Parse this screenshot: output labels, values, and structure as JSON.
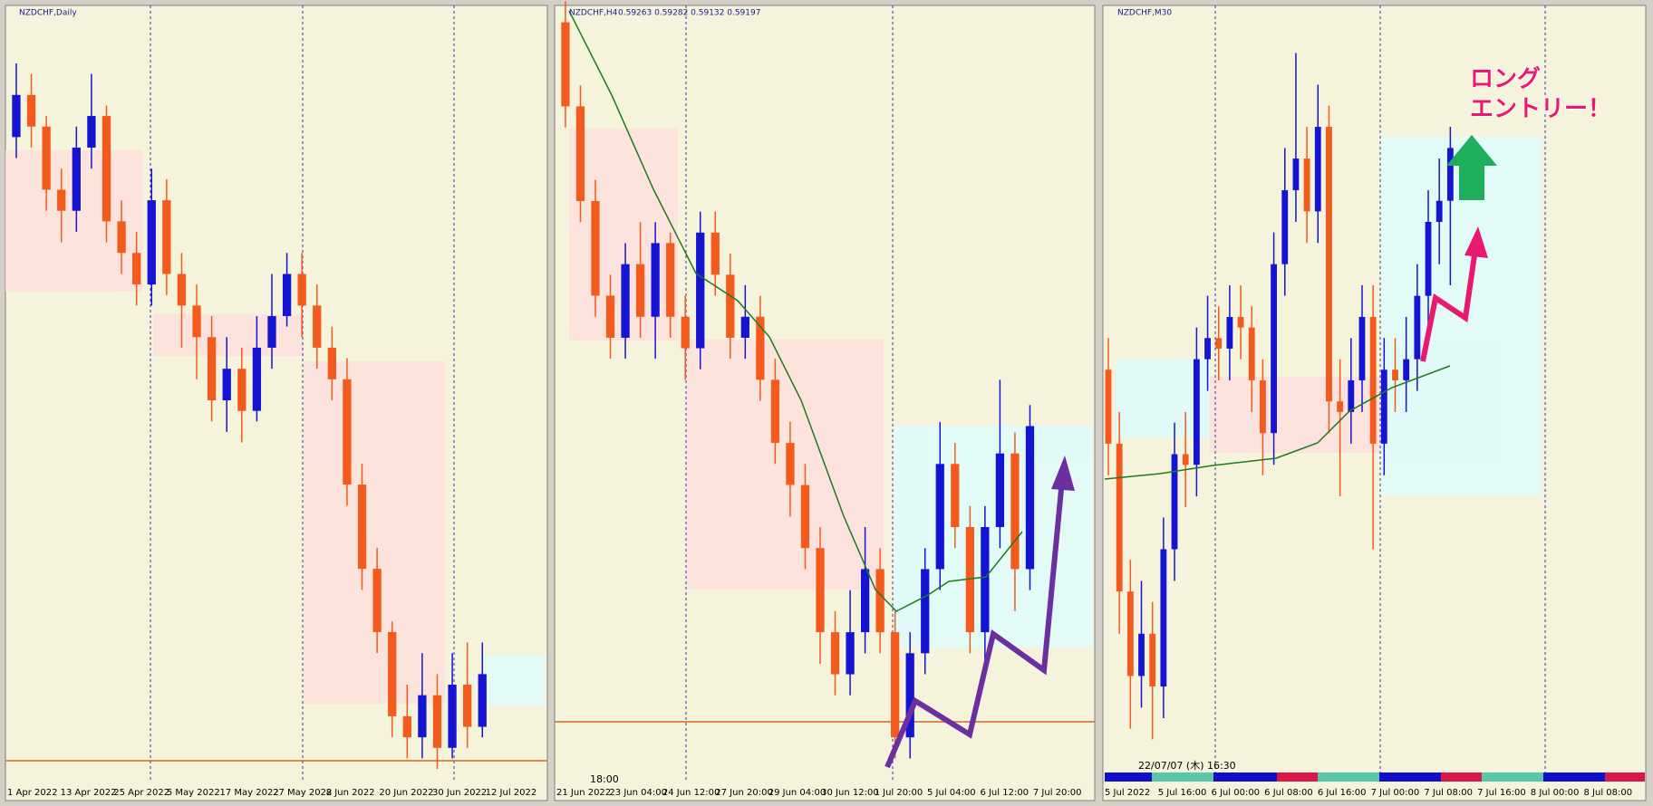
{
  "chart_data": [
    {
      "type": "candlestick",
      "title": "NZDCHF,Daily",
      "xtick_labels": [
        "1 Apr 2022",
        "13 Apr 2022",
        "25 Apr 2022",
        "5 May 2022",
        "17 May 2022",
        "27 May 2022",
        "8 Jun 2022",
        "20 Jun 2022",
        "30 Jun 2022",
        "12 Jul 2022"
      ],
      "ylim": [
        0.5958,
        0.6695
      ],
      "colors": {
        "bull": "#1414d2",
        "bear": "#f25a1e"
      },
      "candles": [
        [
          0.657,
          0.664,
          0.655,
          0.661
        ],
        [
          0.661,
          0.663,
          0.656,
          0.658
        ],
        [
          0.658,
          0.659,
          0.65,
          0.652
        ],
        [
          0.652,
          0.654,
          0.647,
          0.65
        ],
        [
          0.65,
          0.658,
          0.648,
          0.656
        ],
        [
          0.656,
          0.663,
          0.654,
          0.659
        ],
        [
          0.659,
          0.66,
          0.647,
          0.649
        ],
        [
          0.649,
          0.651,
          0.644,
          0.646
        ],
        [
          0.646,
          0.648,
          0.641,
          0.643
        ],
        [
          0.643,
          0.654,
          0.641,
          0.651
        ],
        [
          0.651,
          0.653,
          0.642,
          0.644
        ],
        [
          0.644,
          0.646,
          0.637,
          0.641
        ],
        [
          0.641,
          0.643,
          0.634,
          0.638
        ],
        [
          0.638,
          0.64,
          0.63,
          0.632
        ],
        [
          0.632,
          0.638,
          0.629,
          0.635
        ],
        [
          0.635,
          0.637,
          0.628,
          0.631
        ],
        [
          0.631,
          0.64,
          0.63,
          0.637
        ],
        [
          0.637,
          0.644,
          0.635,
          0.64
        ],
        [
          0.64,
          0.646,
          0.639,
          0.644
        ],
        [
          0.644,
          0.646,
          0.638,
          0.641
        ],
        [
          0.641,
          0.643,
          0.635,
          0.637
        ],
        [
          0.637,
          0.639,
          0.632,
          0.634
        ],
        [
          0.634,
          0.636,
          0.622,
          0.624
        ],
        [
          0.624,
          0.626,
          0.614,
          0.616
        ],
        [
          0.616,
          0.618,
          0.608,
          0.61
        ],
        [
          0.61,
          0.611,
          0.6,
          0.602
        ],
        [
          0.602,
          0.605,
          0.598,
          0.6
        ],
        [
          0.6,
          0.608,
          0.598,
          0.604
        ],
        [
          0.604,
          0.606,
          0.597,
          0.599
        ],
        [
          0.599,
          0.608,
          0.598,
          0.605
        ],
        [
          0.605,
          0.609,
          0.599,
          0.601
        ],
        [
          0.601,
          0.609,
          0.6,
          0.606
        ]
      ]
    },
    {
      "type": "candlestick",
      "title": "NZDCHF,H4",
      "subtitle": "0.59263 0.59282 0.59132 0.59197",
      "time_label": "18:00",
      "xtick_labels": [
        "21 Jun 2022",
        "23 Jun 04:00",
        "24 Jun 12:00",
        "27 Jun 20:00",
        "29 Jun 04:00",
        "30 Jun 12:00",
        "1 Jul 20:00",
        "5 Jul 04:00",
        "6 Jul 12:00",
        "7 Jul 20:00"
      ],
      "ylim": [
        0.5751,
        0.612
      ],
      "colors": {
        "bull": "#1414d2",
        "bear": "#f25a1e"
      },
      "candles": [
        [
          0.6112,
          0.6122,
          0.6062,
          0.6072
        ],
        [
          0.6072,
          0.6082,
          0.6017,
          0.6027
        ],
        [
          0.6027,
          0.6037,
          0.5972,
          0.5982
        ],
        [
          0.5982,
          0.5992,
          0.5952,
          0.5962
        ],
        [
          0.5962,
          0.6007,
          0.5952,
          0.5997
        ],
        [
          0.5997,
          0.6017,
          0.5962,
          0.5972
        ],
        [
          0.5972,
          0.6017,
          0.5952,
          0.6007
        ],
        [
          0.6007,
          0.6012,
          0.5962,
          0.5972
        ],
        [
          0.5972,
          0.5982,
          0.5942,
          0.5957
        ],
        [
          0.5957,
          0.6022,
          0.5947,
          0.6012
        ],
        [
          0.6012,
          0.6022,
          0.5982,
          0.5992
        ],
        [
          0.5992,
          0.6002,
          0.5952,
          0.5962
        ],
        [
          0.5962,
          0.5987,
          0.5952,
          0.5972
        ],
        [
          0.5972,
          0.5982,
          0.5932,
          0.5942
        ],
        [
          0.5942,
          0.5952,
          0.5902,
          0.5912
        ],
        [
          0.5912,
          0.5922,
          0.5877,
          0.5892
        ],
        [
          0.5892,
          0.5902,
          0.5852,
          0.5862
        ],
        [
          0.5862,
          0.5872,
          0.5807,
          0.5822
        ],
        [
          0.5822,
          0.5832,
          0.5792,
          0.5802
        ],
        [
          0.5802,
          0.5842,
          0.5792,
          0.5822
        ],
        [
          0.5822,
          0.5872,
          0.5812,
          0.5852
        ],
        [
          0.5852,
          0.5862,
          0.5812,
          0.5822
        ],
        [
          0.5822,
          0.5832,
          0.5762,
          0.5772
        ],
        [
          0.5772,
          0.5822,
          0.5762,
          0.5812
        ],
        [
          0.5812,
          0.5862,
          0.5802,
          0.5852
        ],
        [
          0.5852,
          0.5922,
          0.5842,
          0.5902
        ],
        [
          0.5902,
          0.5912,
          0.5862,
          0.5872
        ],
        [
          0.5872,
          0.5882,
          0.5812,
          0.5822
        ],
        [
          0.5822,
          0.5882,
          0.5802,
          0.5872
        ],
        [
          0.5872,
          0.5942,
          0.5862,
          0.5907
        ],
        [
          0.5907,
          0.5917,
          0.5832,
          0.5852
        ],
        [
          0.5852,
          0.593,
          0.5842,
          0.592
        ]
      ]
    },
    {
      "type": "candlestick",
      "title": "NZDCHF,M30",
      "time_label": "22/07/07 (木) 16:30",
      "annotation": [
        "ロング",
        "エントリー！"
      ],
      "xtick_labels": [
        "5 Jul 2022",
        "5 Jul 16:00",
        "6 Jul 00:00",
        "6 Jul 08:00",
        "6 Jul 16:00",
        "7 Jul 00:00",
        "7 Jul 08:00",
        "7 Jul 16:00",
        "8 Jul 00:00",
        "8 Jul 08:00"
      ],
      "ylim": [
        0.5852,
        0.5999
      ],
      "colors": {
        "bull": "#1414d2",
        "bear": "#f25a1e"
      },
      "candles": [
        [
          0.593,
          0.5936,
          0.591,
          0.5916
        ],
        [
          0.5916,
          0.5922,
          0.588,
          0.5888
        ],
        [
          0.5888,
          0.5894,
          0.5862,
          0.5872
        ],
        [
          0.5872,
          0.589,
          0.5866,
          0.588
        ],
        [
          0.588,
          0.5886,
          0.586,
          0.587
        ],
        [
          0.587,
          0.5902,
          0.5864,
          0.5896
        ],
        [
          0.5896,
          0.592,
          0.589,
          0.5914
        ],
        [
          0.5914,
          0.5922,
          0.5904,
          0.5912
        ],
        [
          0.5912,
          0.5938,
          0.5906,
          0.5932
        ],
        [
          0.5932,
          0.5944,
          0.5926,
          0.5936
        ],
        [
          0.5936,
          0.5942,
          0.5928,
          0.5934
        ],
        [
          0.5934,
          0.5946,
          0.5928,
          0.594
        ],
        [
          0.594,
          0.5946,
          0.5932,
          0.5938
        ],
        [
          0.5938,
          0.5942,
          0.5922,
          0.5928
        ],
        [
          0.5928,
          0.5932,
          0.591,
          0.5918
        ],
        [
          0.5918,
          0.5956,
          0.5912,
          0.595
        ],
        [
          0.595,
          0.5972,
          0.5944,
          0.5964
        ],
        [
          0.5964,
          0.599,
          0.5958,
          0.597
        ],
        [
          0.597,
          0.5976,
          0.5954,
          0.596
        ],
        [
          0.596,
          0.5984,
          0.5954,
          0.5976
        ],
        [
          0.5976,
          0.598,
          0.5918,
          0.5924
        ],
        [
          0.5924,
          0.5932,
          0.5906,
          0.5922
        ],
        [
          0.5922,
          0.5936,
          0.5916,
          0.5928
        ],
        [
          0.5928,
          0.5946,
          0.5922,
          0.594
        ],
        [
          0.594,
          0.5946,
          0.5896,
          0.5916
        ],
        [
          0.5916,
          0.5936,
          0.591,
          0.593
        ],
        [
          0.593,
          0.5936,
          0.5922,
          0.5928
        ],
        [
          0.5928,
          0.594,
          0.5922,
          0.5932
        ],
        [
          0.5932,
          0.595,
          0.5926,
          0.5944
        ],
        [
          0.5944,
          0.5964,
          0.5938,
          0.5958
        ],
        [
          0.5958,
          0.597,
          0.595,
          0.5962
        ],
        [
          0.5962,
          0.5976,
          0.5946,
          0.5972
        ]
      ]
    }
  ]
}
